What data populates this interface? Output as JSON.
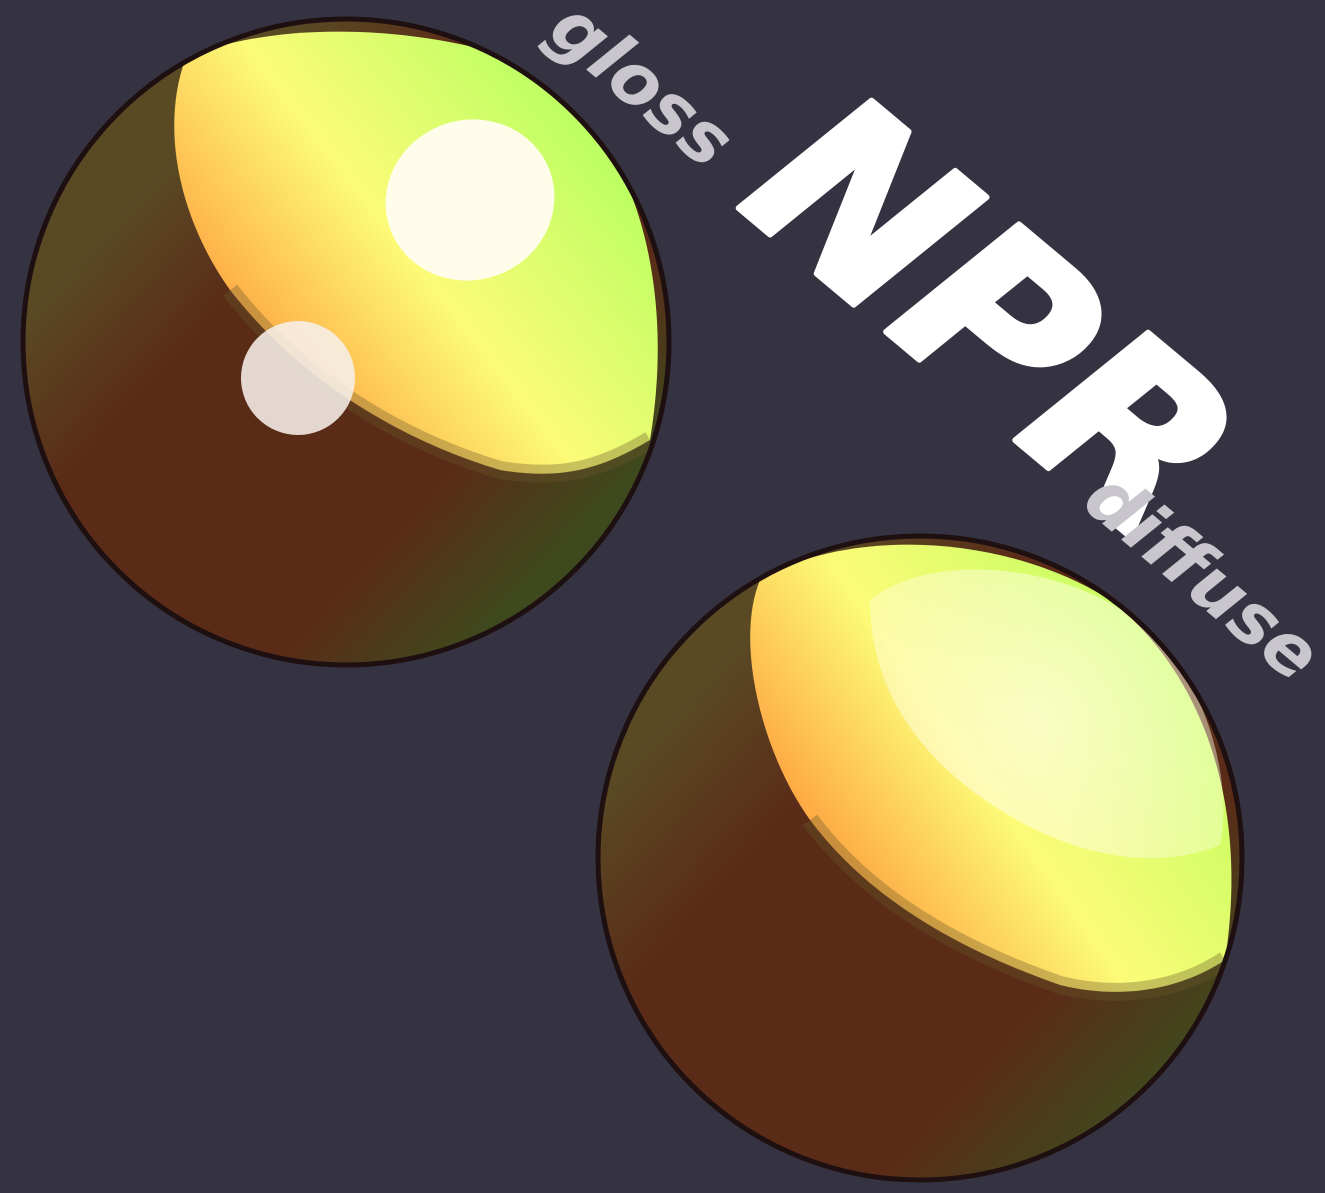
{
  "title": "NPR",
  "labels": {
    "gloss": "gloss",
    "diffuse": "diffuse"
  },
  "colors": {
    "background": "#353342",
    "shadow": "#5a2c18",
    "outline": "#1e0f10",
    "lit_green": "#b4ff5a",
    "lit_yellow": "#fcfb78",
    "lit_orange": "#ffac40",
    "highlight": "#fffde9",
    "title_text": "#ffffff",
    "label_text": "#c8c6cc"
  }
}
